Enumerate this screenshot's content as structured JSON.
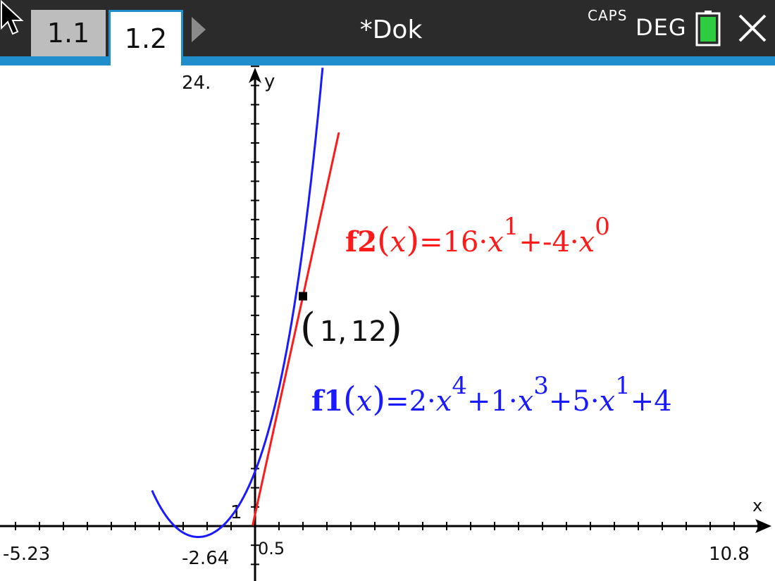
{
  "tabs": [
    {
      "label": "1.1",
      "active": false
    },
    {
      "label": "1.2",
      "active": true
    }
  ],
  "document_title": "*Dok",
  "status": {
    "caps": "CAPS",
    "angle_mode": "DEG",
    "battery": "full"
  },
  "graph": {
    "window": {
      "xmin_label": "-5.23",
      "xmax_label": "10.8",
      "ymax_label": "24.",
      "y_tick_label": "1",
      "x_mark_label": "-2.64",
      "x_mark2_label": "0.5"
    },
    "axes": {
      "x_label": "x",
      "y_label": "y"
    },
    "functions": [
      {
        "id": "f1",
        "name": "f1",
        "var": "x",
        "expr_parts": [
          "=2·",
          "x",
          "4",
          "+1·",
          "x",
          "3",
          "+5·",
          "x",
          "1",
          "+4"
        ],
        "color": "#1a1aff"
      },
      {
        "id": "f2",
        "name": "f2",
        "var": "x",
        "expr_parts": [
          "=16·",
          "x",
          "1",
          "+-4·",
          "x",
          "0"
        ],
        "color": "#ff1a1a"
      }
    ],
    "point": {
      "x": 1,
      "y": 12,
      "label_open": "(",
      "label_x": "1",
      "label_sep": ",",
      "label_y": "12",
      "label_close": ")"
    }
  }
}
